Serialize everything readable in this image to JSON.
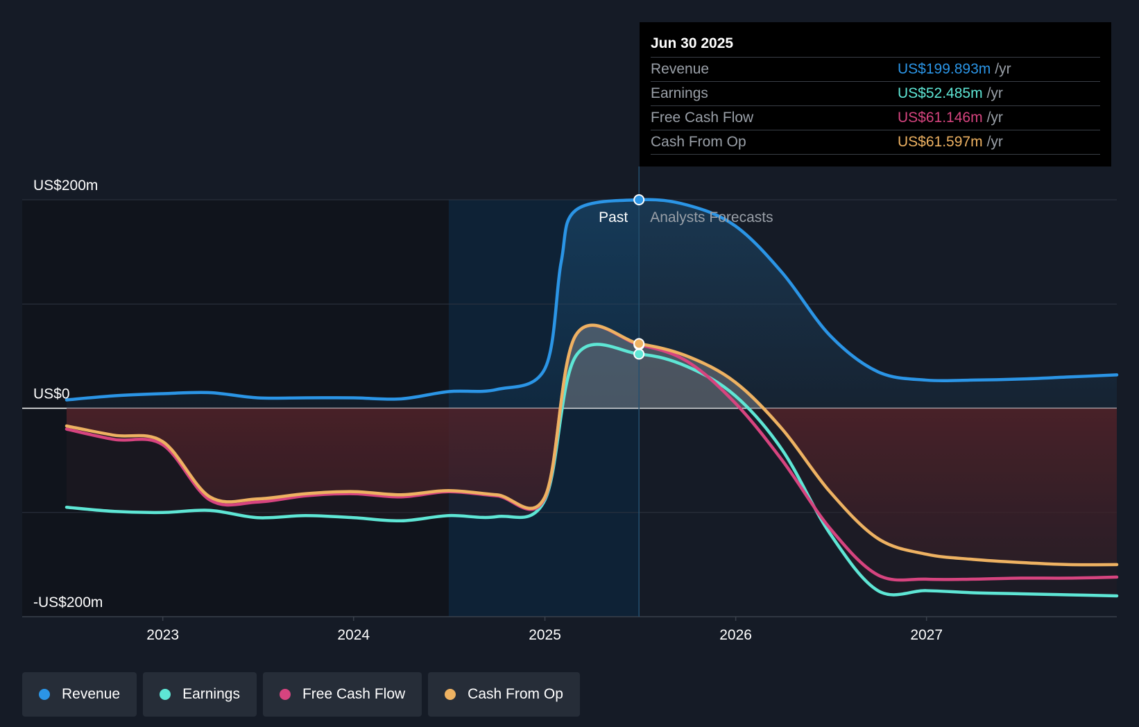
{
  "chart_data": {
    "type": "line",
    "x_ticks": [
      "2023",
      "2024",
      "2025",
      "2026",
      "2027"
    ],
    "y_labels": [
      "US$200m",
      "US$0",
      "-US$200m"
    ],
    "ylim": [
      -200,
      200
    ],
    "grid": true,
    "past_label": "Past",
    "forecast_label": "Analysts Forecasts",
    "colors": {
      "Revenue": "#2b95e6",
      "Earnings": "#5ee6d5",
      "Free Cash Flow": "#d6447f",
      "Cash From Op": "#eeb262"
    },
    "series": [
      {
        "name": "Revenue",
        "x": [
          "2022-07-01",
          "2022-10-01",
          "2023-01-01",
          "2023-04-01",
          "2023-07-01",
          "2023-10-01",
          "2024-01-01",
          "2024-04-01",
          "2024-07-01",
          "2024-10-01",
          "2025-01-01",
          "2025-02-01",
          "2025-03-01",
          "2025-06-30",
          "2025-09-30",
          "2025-12-31",
          "2026-03-31",
          "2026-06-30",
          "2026-09-30",
          "2026-12-31",
          "2027-03-31",
          "2027-06-30",
          "2027-09-30",
          "2027-12-31"
        ],
        "values": [
          8,
          12,
          14,
          15,
          10,
          10,
          10,
          9,
          16,
          18,
          38,
          140,
          190,
          200,
          195,
          175,
          130,
          70,
          35,
          27,
          27,
          28,
          30,
          32
        ]
      },
      {
        "name": "Earnings",
        "x": [
          "2022-07-01",
          "2022-10-01",
          "2023-01-01",
          "2023-04-01",
          "2023-07-01",
          "2023-10-01",
          "2024-01-01",
          "2024-04-01",
          "2024-07-01",
          "2024-10-01",
          "2025-01-01",
          "2025-03-01",
          "2025-06-30",
          "2025-09-30",
          "2025-12-31",
          "2026-03-31",
          "2026-06-30",
          "2026-09-30",
          "2026-12-31",
          "2027-03-31",
          "2027-06-30",
          "2027-09-30",
          "2027-12-31"
        ],
        "values": [
          -95,
          -99,
          -100,
          -98,
          -105,
          -103,
          -105,
          -108,
          -103,
          -104,
          -88,
          50,
          52,
          40,
          12,
          -40,
          -120,
          -175,
          -175,
          -177,
          -178,
          -179,
          -180
        ]
      },
      {
        "name": "Free Cash Flow",
        "x": [
          "2022-07-01",
          "2022-10-01",
          "2023-01-01",
          "2023-04-01",
          "2023-07-01",
          "2023-10-01",
          "2024-01-01",
          "2024-04-01",
          "2024-07-01",
          "2024-10-01",
          "2025-01-01",
          "2025-03-01",
          "2025-06-30",
          "2025-09-30",
          "2025-12-31",
          "2026-03-31",
          "2026-06-30",
          "2026-09-30",
          "2026-12-31",
          "2027-03-31",
          "2027-06-30",
          "2027-09-30",
          "2027-12-31"
        ],
        "values": [
          -20,
          -30,
          -35,
          -88,
          -90,
          -84,
          -82,
          -85,
          -80,
          -84,
          -86,
          70,
          61,
          45,
          5,
          -50,
          -115,
          -160,
          -164,
          -164,
          -163,
          -163,
          -162
        ]
      },
      {
        "name": "Cash From Op",
        "x": [
          "2022-07-01",
          "2022-10-01",
          "2023-01-01",
          "2023-04-01",
          "2023-07-01",
          "2023-10-01",
          "2024-01-01",
          "2024-04-01",
          "2024-07-01",
          "2024-10-01",
          "2025-01-01",
          "2025-03-01",
          "2025-06-30",
          "2025-09-30",
          "2025-12-31",
          "2026-03-31",
          "2026-06-30",
          "2026-09-30",
          "2026-12-31",
          "2027-03-31",
          "2027-06-30",
          "2027-09-30",
          "2027-12-31"
        ],
        "values": [
          -17,
          -26,
          -32,
          -85,
          -87,
          -82,
          -80,
          -83,
          -79,
          -83,
          -85,
          70,
          62,
          50,
          25,
          -20,
          -80,
          -125,
          -140,
          -145,
          -148,
          -150,
          -150
        ]
      }
    ]
  },
  "tooltip": {
    "date": "Jun 30 2025",
    "rows": [
      {
        "label": "Revenue",
        "value": "US$199.893m",
        "unit": "/yr",
        "color": "#2b95e6"
      },
      {
        "label": "Earnings",
        "value": "US$52.485m",
        "unit": "/yr",
        "color": "#5ee6d5"
      },
      {
        "label": "Free Cash Flow",
        "value": "US$61.146m",
        "unit": "/yr",
        "color": "#d6447f"
      },
      {
        "label": "Cash From Op",
        "value": "US$61.597m",
        "unit": "/yr",
        "color": "#eeb262"
      }
    ]
  },
  "legend": [
    {
      "label": "Revenue",
      "color": "#2b95e6"
    },
    {
      "label": "Earnings",
      "color": "#5ee6d5"
    },
    {
      "label": "Free Cash Flow",
      "color": "#d6447f"
    },
    {
      "label": "Cash From Op",
      "color": "#eeb262"
    }
  ]
}
